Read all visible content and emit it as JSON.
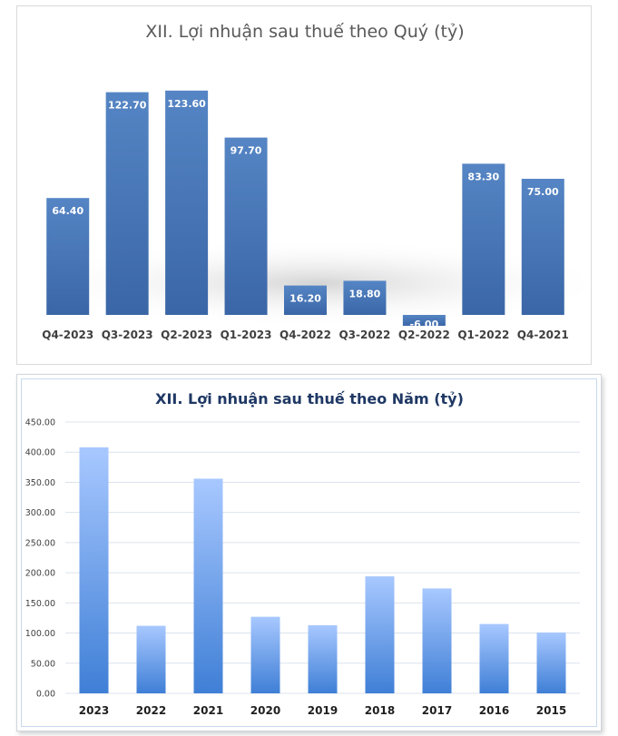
{
  "chart_data": [
    {
      "type": "bar",
      "title": "XII. Lợi nhuận sau thuế theo Quý (tỷ)",
      "categories": [
        "Q4-2023",
        "Q3-2023",
        "Q2-2023",
        "Q1-2023",
        "Q4-2022",
        "Q3-2022",
        "Q2-2022",
        "Q1-2022",
        "Q4-2021"
      ],
      "values": [
        64.4,
        122.7,
        123.6,
        97.7,
        16.2,
        18.8,
        -6.0,
        83.3,
        75.0
      ],
      "value_labels": [
        "64.40",
        "122.70",
        "123.60",
        "97.70",
        "16.20",
        "18.80",
        "-6.00",
        "83.30",
        "75.00"
      ],
      "xlabel": "",
      "ylabel": "",
      "ylim": [
        -10,
        140
      ],
      "grid": false,
      "legend": "none",
      "colors": {
        "bar_top": "#5585c4",
        "bar_bottom": "#3a66a7"
      }
    },
    {
      "type": "bar",
      "title": "XII. Lợi nhuận sau thuế theo Năm (tỷ)",
      "categories": [
        "2023",
        "2022",
        "2021",
        "2020",
        "2019",
        "2018",
        "2017",
        "2016",
        "2015"
      ],
      "values": [
        408,
        112,
        356,
        127,
        113,
        194,
        174,
        115,
        101
      ],
      "yticks": [
        "0.00",
        "50.00",
        "100.00",
        "150.00",
        "200.00",
        "250.00",
        "300.00",
        "350.00",
        "400.00",
        "450.00"
      ],
      "xlabel": "",
      "ylabel": "",
      "ylim": [
        0,
        450
      ],
      "grid": true,
      "legend": "none",
      "colors": {
        "bar_top": "#a8c8ff",
        "bar_bottom": "#3f7fd6",
        "grid": "#dce3ec"
      }
    }
  ]
}
